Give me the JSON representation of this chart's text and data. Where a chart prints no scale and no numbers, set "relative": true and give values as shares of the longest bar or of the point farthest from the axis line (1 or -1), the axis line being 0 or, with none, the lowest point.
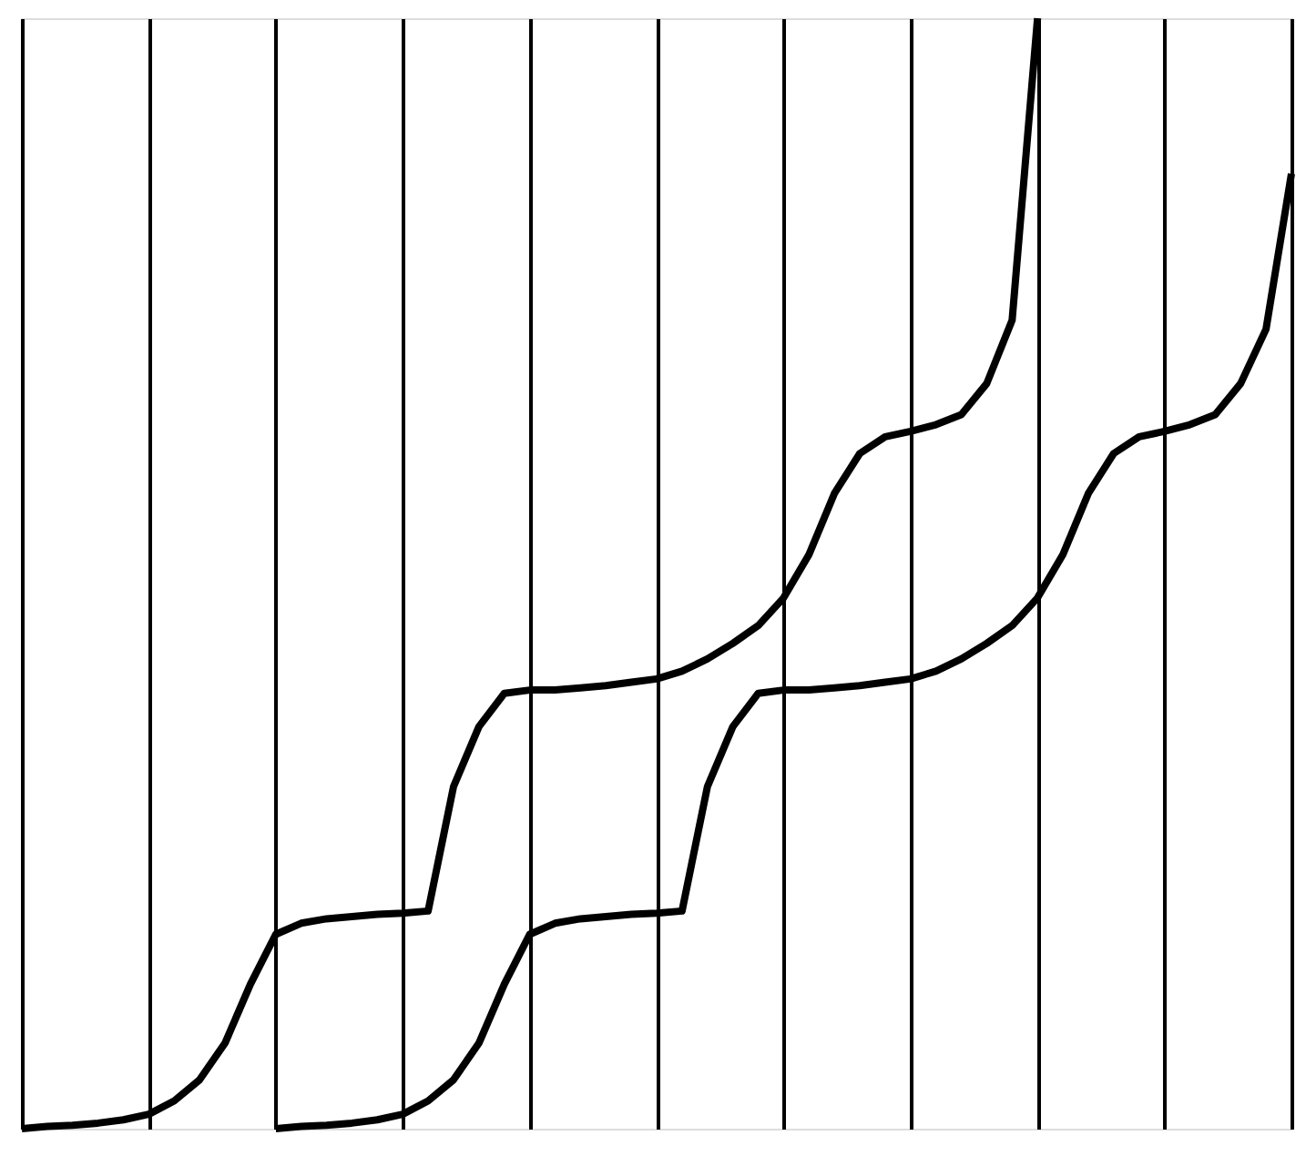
{
  "chart_data": {
    "type": "line",
    "relative": true,
    "grid": "x",
    "line_style": "solid",
    "marker": "none",
    "categories": [
      null,
      null,
      null,
      null,
      null,
      null,
      null,
      null,
      null,
      null,
      null,
      null,
      null,
      null,
      null,
      null,
      null,
      null,
      null,
      null,
      null,
      null,
      null,
      null,
      null,
      null,
      null,
      null,
      null,
      null,
      null,
      null,
      null,
      null,
      null,
      null,
      null,
      null,
      null,
      null,
      null,
      null,
      null,
      null,
      null,
      null,
      null,
      null,
      null,
      null,
      null
    ],
    "series": [
      {
        "color": "#000000",
        "values": [
          0,
          0.002,
          0.003,
          0.005,
          0.008,
          0.013,
          0.025,
          0.044,
          0.077,
          0.13,
          0.175,
          0.185,
          0.189,
          0.191,
          0.193,
          0.194,
          0.196,
          0.308,
          0.362,
          0.392,
          0.395,
          0.395,
          0.397,
          0.399,
          0.402,
          0.405,
          0.412,
          0.423,
          0.437,
          0.453,
          0.478,
          0.517,
          0.572,
          0.608,
          0.623,
          0.628,
          0.634,
          0.643,
          0.671,
          0.728,
          1,
          null,
          null,
          null,
          null,
          null,
          null,
          null,
          null,
          null,
          null
        ]
      },
      {
        "color": "#000000",
        "values": [
          null,
          null,
          null,
          null,
          null,
          null,
          null,
          null,
          null,
          null,
          0,
          0.002,
          0.003,
          0.005,
          0.008,
          0.013,
          0.025,
          0.044,
          0.077,
          0.13,
          0.175,
          0.185,
          0.189,
          0.191,
          0.193,
          0.194,
          0.196,
          0.308,
          0.362,
          0.392,
          0.395,
          0.395,
          0.397,
          0.399,
          0.402,
          0.405,
          0.412,
          0.423,
          0.437,
          0.453,
          0.478,
          0.517,
          0.572,
          0.608,
          0.623,
          0.628,
          0.634,
          0.643,
          0.671,
          0.72,
          0.86
        ]
      }
    ]
  }
}
